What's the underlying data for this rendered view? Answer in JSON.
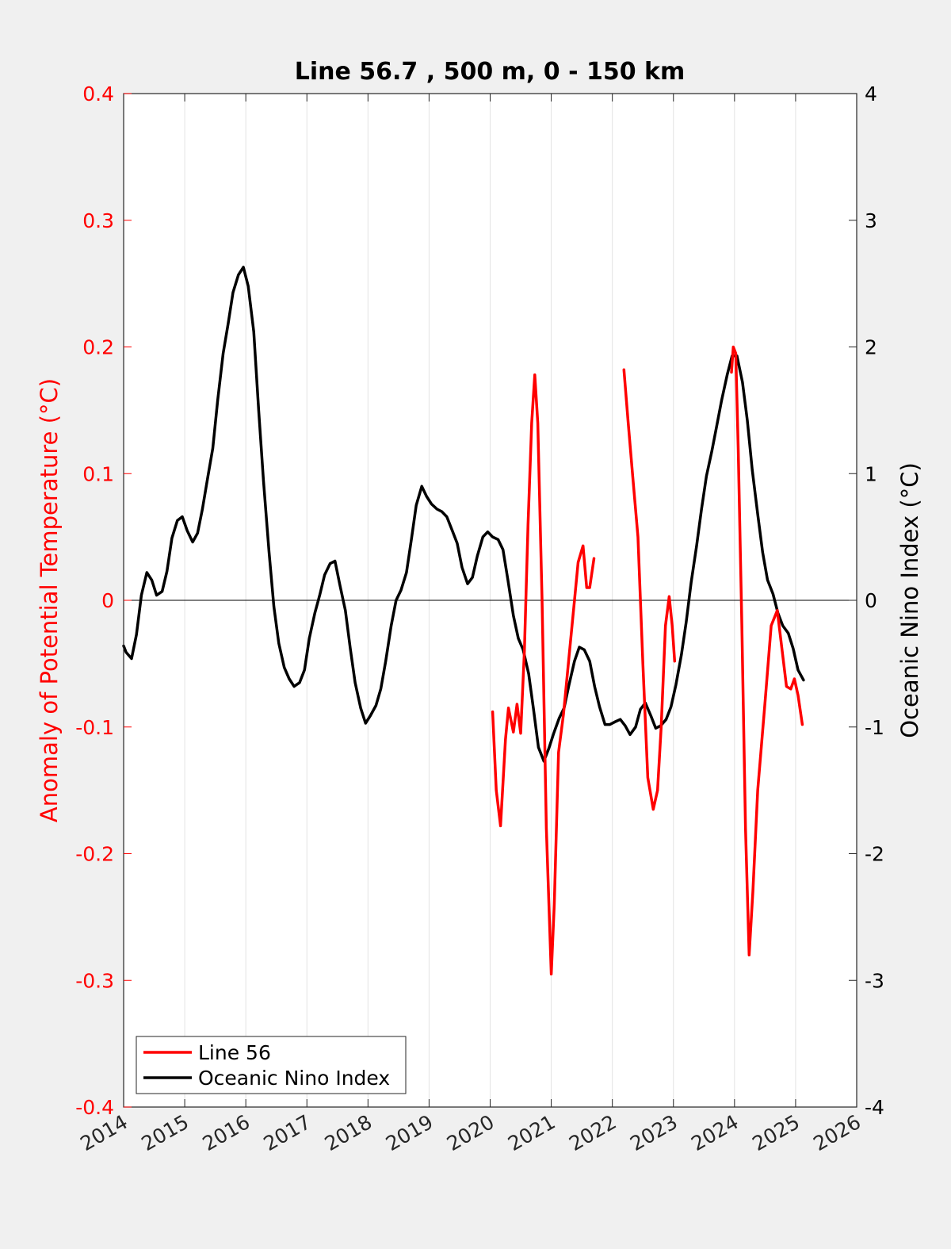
{
  "chart_data": {
    "type": "line",
    "title": "Line 56.7 , 500 m, 0 - 150 km",
    "ylabel_left": "Anomaly of Potential Temperature (°C)",
    "ylabel_right": "Oceanic Nino Index (°C)",
    "xlim": [
      2014,
      2026
    ],
    "ylim_left": [
      -0.4,
      0.4
    ],
    "ylim_right": [
      -4,
      4
    ],
    "x_ticks": [
      "2014",
      "2015",
      "2016",
      "2017",
      "2018",
      "2019",
      "2020",
      "2021",
      "2022",
      "2023",
      "2024",
      "2025",
      "2026"
    ],
    "y_ticks_left": [
      "0.4",
      "0.3",
      "0.2",
      "0.1",
      "0",
      "-0.1",
      "-0.2",
      "-0.3",
      "-0.4"
    ],
    "y_ticks_right": [
      "4",
      "3",
      "2",
      "1",
      "0",
      "-1",
      "-2",
      "-3",
      "-4"
    ],
    "vertical_grid": true,
    "zero_line": true,
    "legend_position": "bottom-left",
    "colors": {
      "line56": "#ff0000",
      "oni": "#000000",
      "left_axis": "#ff0000"
    },
    "series": [
      {
        "name": "Line 56",
        "axis": "left",
        "segments": [
          [
            [
              2020.04,
              -0.088
            ],
            [
              2020.1,
              -0.15
            ],
            [
              2020.17,
              -0.178
            ],
            [
              2020.25,
              -0.11
            ],
            [
              2020.3,
              -0.085
            ],
            [
              2020.38,
              -0.104
            ],
            [
              2020.44,
              -0.082
            ],
            [
              2020.5,
              -0.105
            ],
            [
              2020.56,
              -0.04
            ],
            [
              2020.62,
              0.06
            ],
            [
              2020.68,
              0.14
            ],
            [
              2020.73,
              0.178
            ],
            [
              2020.78,
              0.14
            ],
            [
              2020.85,
              0.0
            ],
            [
              2020.92,
              -0.18
            ],
            [
              2021.0,
              -0.295
            ],
            [
              2021.05,
              -0.24
            ],
            [
              2021.12,
              -0.12
            ],
            [
              2021.2,
              -0.09
            ],
            [
              2021.3,
              -0.04
            ],
            [
              2021.38,
              0.0
            ],
            [
              2021.44,
              0.03
            ],
            [
              2021.52,
              0.043
            ],
            [
              2021.58,
              0.01
            ],
            [
              2021.63,
              0.01
            ],
            [
              2021.7,
              0.033
            ]
          ],
          [
            [
              2022.19,
              0.182
            ],
            [
              2022.26,
              0.14
            ],
            [
              2022.33,
              0.1
            ],
            [
              2022.42,
              0.05
            ],
            [
              2022.5,
              -0.05
            ],
            [
              2022.58,
              -0.14
            ],
            [
              2022.67,
              -0.165
            ],
            [
              2022.74,
              -0.15
            ],
            [
              2022.8,
              -0.1
            ],
            [
              2022.87,
              -0.02
            ],
            [
              2022.93,
              0.003
            ],
            [
              2022.98,
              -0.02
            ],
            [
              2023.02,
              -0.048
            ]
          ],
          [
            [
              2023.95,
              0.18
            ],
            [
              2023.98,
              0.2
            ],
            [
              2024.02,
              0.195
            ],
            [
              2024.06,
              0.12
            ],
            [
              2024.12,
              -0.02
            ],
            [
              2024.18,
              -0.18
            ],
            [
              2024.24,
              -0.28
            ],
            [
              2024.3,
              -0.23
            ],
            [
              2024.38,
              -0.15
            ],
            [
              2024.5,
              -0.08
            ],
            [
              2024.6,
              -0.02
            ],
            [
              2024.7,
              -0.008
            ],
            [
              2024.78,
              -0.04
            ],
            [
              2024.85,
              -0.068
            ],
            [
              2024.92,
              -0.07
            ],
            [
              2024.98,
              -0.062
            ],
            [
              2025.04,
              -0.075
            ],
            [
              2025.11,
              -0.098
            ]
          ]
        ]
      },
      {
        "name": "Oceanic Nino Index",
        "axis": "right",
        "segments": [
          [
            [
              2014.0,
              -0.36
            ],
            [
              2014.04,
              -0.41
            ],
            [
              2014.13,
              -0.46
            ],
            [
              2014.21,
              -0.27
            ],
            [
              2014.29,
              0.04
            ],
            [
              2014.38,
              0.22
            ],
            [
              2014.46,
              0.16
            ],
            [
              2014.54,
              0.04
            ],
            [
              2014.63,
              0.07
            ],
            [
              2014.71,
              0.23
            ],
            [
              2014.79,
              0.49
            ],
            [
              2014.88,
              0.63
            ],
            [
              2014.96,
              0.66
            ],
            [
              2015.04,
              0.55
            ],
            [
              2015.13,
              0.46
            ],
            [
              2015.21,
              0.53
            ],
            [
              2015.29,
              0.72
            ],
            [
              2015.38,
              0.98
            ],
            [
              2015.46,
              1.2
            ],
            [
              2015.54,
              1.58
            ],
            [
              2015.63,
              1.95
            ],
            [
              2015.71,
              2.18
            ],
            [
              2015.79,
              2.43
            ],
            [
              2015.88,
              2.57
            ],
            [
              2015.96,
              2.63
            ],
            [
              2016.04,
              2.48
            ],
            [
              2016.13,
              2.12
            ],
            [
              2016.21,
              1.5
            ],
            [
              2016.29,
              0.94
            ],
            [
              2016.38,
              0.38
            ],
            [
              2016.46,
              -0.05
            ],
            [
              2016.54,
              -0.34
            ],
            [
              2016.63,
              -0.53
            ],
            [
              2016.71,
              -0.62
            ],
            [
              2016.79,
              -0.68
            ],
            [
              2016.88,
              -0.65
            ],
            [
              2016.96,
              -0.55
            ],
            [
              2017.04,
              -0.3
            ],
            [
              2017.13,
              -0.1
            ],
            [
              2017.21,
              0.04
            ],
            [
              2017.29,
              0.2
            ],
            [
              2017.38,
              0.29
            ],
            [
              2017.46,
              0.31
            ],
            [
              2017.54,
              0.12
            ],
            [
              2017.63,
              -0.08
            ],
            [
              2017.71,
              -0.38
            ],
            [
              2017.79,
              -0.65
            ],
            [
              2017.88,
              -0.85
            ],
            [
              2017.96,
              -0.97
            ],
            [
              2018.04,
              -0.91
            ],
            [
              2018.13,
              -0.83
            ],
            [
              2018.21,
              -0.7
            ],
            [
              2018.29,
              -0.48
            ],
            [
              2018.38,
              -0.2
            ],
            [
              2018.46,
              0.0
            ],
            [
              2018.54,
              0.08
            ],
            [
              2018.63,
              0.22
            ],
            [
              2018.71,
              0.48
            ],
            [
              2018.79,
              0.75
            ],
            [
              2018.88,
              0.9
            ],
            [
              2018.96,
              0.82
            ],
            [
              2019.04,
              0.76
            ],
            [
              2019.13,
              0.72
            ],
            [
              2019.21,
              0.7
            ],
            [
              2019.29,
              0.66
            ],
            [
              2019.38,
              0.55
            ],
            [
              2019.46,
              0.45
            ],
            [
              2019.54,
              0.26
            ],
            [
              2019.63,
              0.13
            ],
            [
              2019.71,
              0.18
            ],
            [
              2019.79,
              0.35
            ],
            [
              2019.88,
              0.5
            ],
            [
              2019.96,
              0.54
            ],
            [
              2020.04,
              0.5
            ],
            [
              2020.13,
              0.48
            ],
            [
              2020.21,
              0.4
            ],
            [
              2020.29,
              0.16
            ],
            [
              2020.38,
              -0.12
            ],
            [
              2020.46,
              -0.3
            ],
            [
              2020.54,
              -0.39
            ],
            [
              2020.63,
              -0.58
            ],
            [
              2020.71,
              -0.86
            ],
            [
              2020.79,
              -1.16
            ],
            [
              2020.88,
              -1.27
            ],
            [
              2020.96,
              -1.17
            ],
            [
              2021.04,
              -1.05
            ],
            [
              2021.13,
              -0.93
            ],
            [
              2021.21,
              -0.85
            ],
            [
              2021.29,
              -0.67
            ],
            [
              2021.38,
              -0.48
            ],
            [
              2021.46,
              -0.37
            ],
            [
              2021.54,
              -0.39
            ],
            [
              2021.63,
              -0.48
            ],
            [
              2021.71,
              -0.68
            ],
            [
              2021.79,
              -0.84
            ],
            [
              2021.88,
              -0.98
            ],
            [
              2021.96,
              -0.98
            ],
            [
              2022.04,
              -0.96
            ],
            [
              2022.13,
              -0.94
            ],
            [
              2022.21,
              -0.99
            ],
            [
              2022.29,
              -1.06
            ],
            [
              2022.38,
              -1.0
            ],
            [
              2022.46,
              -0.86
            ],
            [
              2022.54,
              -0.81
            ],
            [
              2022.63,
              -0.91
            ],
            [
              2022.71,
              -1.01
            ],
            [
              2022.79,
              -0.99
            ],
            [
              2022.88,
              -0.94
            ],
            [
              2022.96,
              -0.84
            ],
            [
              2023.04,
              -0.67
            ],
            [
              2023.13,
              -0.43
            ],
            [
              2023.21,
              -0.17
            ],
            [
              2023.29,
              0.14
            ],
            [
              2023.38,
              0.43
            ],
            [
              2023.46,
              0.72
            ],
            [
              2023.54,
              0.98
            ],
            [
              2023.63,
              1.18
            ],
            [
              2023.71,
              1.38
            ],
            [
              2023.79,
              1.58
            ],
            [
              2023.88,
              1.78
            ],
            [
              2023.96,
              1.93
            ],
            [
              2024.04,
              1.93
            ],
            [
              2024.13,
              1.72
            ],
            [
              2024.21,
              1.42
            ],
            [
              2024.29,
              1.03
            ],
            [
              2024.38,
              0.68
            ],
            [
              2024.46,
              0.38
            ],
            [
              2024.54,
              0.16
            ],
            [
              2024.63,
              0.05
            ],
            [
              2024.71,
              -0.1
            ],
            [
              2024.79,
              -0.2
            ],
            [
              2024.88,
              -0.26
            ],
            [
              2024.96,
              -0.38
            ],
            [
              2025.04,
              -0.55
            ],
            [
              2025.13,
              -0.63
            ]
          ]
        ]
      }
    ]
  }
}
